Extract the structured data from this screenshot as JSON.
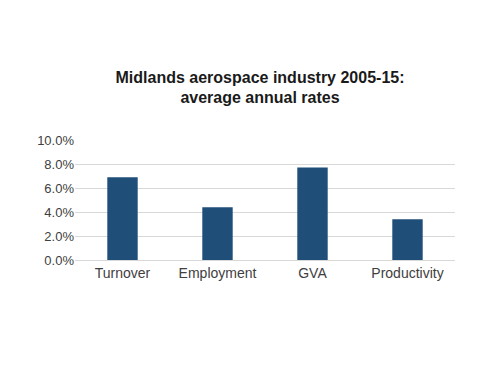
{
  "chart_data": {
    "type": "bar",
    "title": "Midlands aerospace industry 2005-15:\naverage annual rates",
    "categories": [
      "Turnover",
      "Employment",
      "GVA",
      "Productivity"
    ],
    "values": [
      6.9,
      4.4,
      7.7,
      3.4
    ],
    "color": "#1f4e79",
    "ylim": [
      0,
      10
    ],
    "yticks": [
      {
        "value": 0,
        "label": "0.0%"
      },
      {
        "value": 2,
        "label": "2.0%"
      },
      {
        "value": 4,
        "label": "4.0%"
      },
      {
        "value": 6,
        "label": "6.0%"
      },
      {
        "value": 8,
        "label": "8.0%"
      },
      {
        "value": 10,
        "label": "10.0%"
      }
    ],
    "grid": true,
    "data_labels": false
  }
}
